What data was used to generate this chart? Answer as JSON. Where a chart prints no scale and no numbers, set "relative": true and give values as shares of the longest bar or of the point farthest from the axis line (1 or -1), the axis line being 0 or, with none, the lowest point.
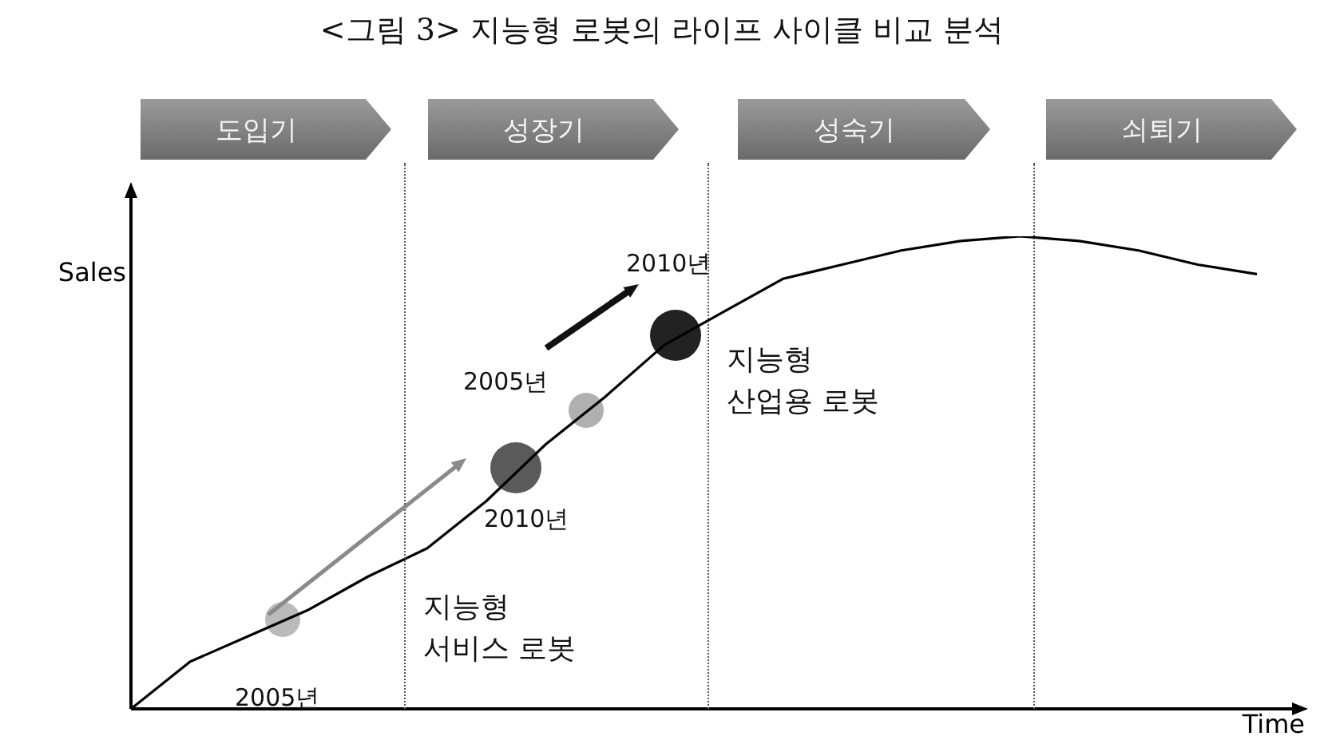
{
  "chart_data": {
    "type": "line",
    "title": "<그림 3> 지능형 로봇의 라이프 사이클 비교 분석",
    "xlabel": "Time",
    "ylabel": "Sales",
    "relative": true,
    "marker": "none",
    "categories": [
      null,
      null,
      null,
      null,
      null,
      null,
      null,
      null,
      null,
      null,
      null,
      null,
      null,
      null,
      null,
      null,
      null,
      null,
      null,
      null
    ],
    "color": "#000000",
    "values": [
      0,
      0.1,
      0.155,
      0.21,
      0.28,
      0.34,
      0.44,
      0.56,
      0.66,
      0.77,
      0.84,
      0.91,
      0.94,
      0.97,
      0.99,
      1,
      0.99,
      0.97,
      0.94,
      0.92
    ],
    "annotations": [
      "도입기",
      "성장기",
      "성숙기",
      "쇠퇴기",
      "2005년",
      "2010년",
      "지능형 서비스 로봇",
      "2005년",
      "2010년",
      "지능형 산업용 로봇"
    ]
  }
}
